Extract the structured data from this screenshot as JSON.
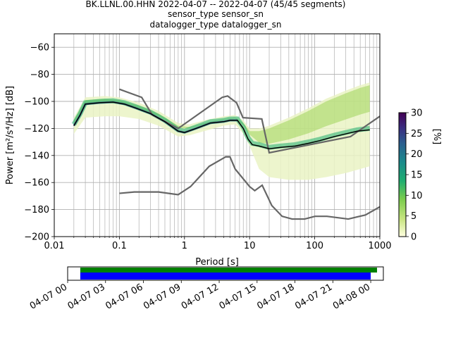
{
  "chart_data": [
    {
      "type": "heatmap",
      "title_lines": [
        "BK.LLNL.00.HHN   2022-04-07 -- 2022-04-07  (45/45 segments)",
        "sensor_type  sensor_sn",
        "datalogger_type  datalogger_sn"
      ],
      "xlabel": "Period [s]",
      "ylabel": "Power [m²/s⁴/Hz] [dB]",
      "x_scale": "log",
      "xlim": [
        0.01,
        1000
      ],
      "ylim": [
        -200,
        -50
      ],
      "x_ticks": [
        {
          "value": 0.01,
          "label": "0.01"
        },
        {
          "value": 0.1,
          "label": "0.1"
        },
        {
          "value": 1,
          "label": "1"
        },
        {
          "value": 10,
          "label": "10"
        },
        {
          "value": 100,
          "label": "100"
        },
        {
          "value": 1000,
          "label": "1000"
        }
      ],
      "y_ticks": [
        -60,
        -80,
        -100,
        -120,
        -140,
        -160,
        -180,
        -200
      ],
      "grid": true,
      "colorbar": {
        "label": "[%]",
        "min": 0,
        "max": 30,
        "ticks": [
          0,
          5,
          10,
          15,
          20,
          25,
          30
        ],
        "colors": [
          "#ffffe0",
          "#c9e582",
          "#7ccd4d",
          "#1fad70",
          "#1a8a8b",
          "#2a5f8f",
          "#3b2c80",
          "#440154"
        ]
      },
      "model_curves": {
        "color": "#666666",
        "high_noise_model": [
          [
            0.1,
            -91
          ],
          [
            0.22,
            -97
          ],
          [
            0.32,
            -110
          ],
          [
            0.8,
            -120
          ],
          [
            3.8,
            -97
          ],
          [
            4.6,
            -96
          ],
          [
            6.3,
            -101
          ],
          [
            7.9,
            -112
          ],
          [
            15.4,
            -113
          ],
          [
            20,
            -138
          ],
          [
            354.8,
            -126
          ],
          [
            1000,
            -111
          ]
        ],
        "low_noise_model": [
          [
            0.1,
            -168
          ],
          [
            0.17,
            -167
          ],
          [
            0.4,
            -167
          ],
          [
            0.8,
            -169
          ],
          [
            1.24,
            -163
          ],
          [
            2.4,
            -148
          ],
          [
            4.3,
            -141
          ],
          [
            5,
            -141
          ],
          [
            6,
            -150
          ],
          [
            10,
            -163
          ],
          [
            12,
            -166
          ],
          [
            15.6,
            -162
          ],
          [
            21.9,
            -177
          ],
          [
            31.6,
            -185
          ],
          [
            45,
            -187
          ],
          [
            70,
            -187
          ],
          [
            101,
            -185
          ],
          [
            154,
            -185
          ],
          [
            328,
            -187
          ],
          [
            600,
            -184
          ],
          [
            1000,
            -178
          ]
        ]
      },
      "mean_curve": {
        "color": "#000000",
        "points": [
          [
            0.02,
            -118
          ],
          [
            0.025,
            -110
          ],
          [
            0.03,
            -102
          ],
          [
            0.05,
            -101
          ],
          [
            0.08,
            -100.5
          ],
          [
            0.12,
            -102
          ],
          [
            0.18,
            -105
          ],
          [
            0.3,
            -109
          ],
          [
            0.5,
            -115
          ],
          [
            0.8,
            -122
          ],
          [
            1.0,
            -123
          ],
          [
            1.5,
            -120
          ],
          [
            2.5,
            -116
          ],
          [
            4.0,
            -115
          ],
          [
            5.0,
            -114
          ],
          [
            6.5,
            -114
          ],
          [
            8.0,
            -120
          ],
          [
            9.5,
            -128
          ],
          [
            11,
            -132
          ],
          [
            14,
            -133
          ],
          [
            20,
            -135
          ],
          [
            30,
            -134
          ],
          [
            50,
            -133
          ],
          [
            80,
            -131
          ],
          [
            120,
            -129
          ],
          [
            200,
            -126
          ],
          [
            300,
            -124
          ],
          [
            450,
            -122
          ],
          [
            700,
            -121
          ]
        ]
      },
      "density_band": [
        [
          0.02,
          -124,
          -112
        ],
        [
          0.03,
          -112,
          -97
        ],
        [
          0.06,
          -111,
          -96
        ],
        [
          0.1,
          -111,
          -97
        ],
        [
          0.2,
          -113,
          -101
        ],
        [
          0.4,
          -118,
          -107
        ],
        [
          0.8,
          -126,
          -116
        ],
        [
          1.2,
          -125,
          -117
        ],
        [
          2,
          -122,
          -114
        ],
        [
          4,
          -118,
          -111
        ],
        [
          6,
          -117,
          -110
        ],
        [
          8,
          -124,
          -114
        ],
        [
          10,
          -133,
          -120
        ],
        [
          14,
          -150,
          -120
        ],
        [
          20,
          -156,
          -118
        ],
        [
          40,
          -158,
          -112
        ],
        [
          80,
          -158,
          -105
        ],
        [
          150,
          -156,
          -98
        ],
        [
          300,
          -153,
          -92
        ],
        [
          500,
          -150,
          -88
        ],
        [
          700,
          -148,
          -86
        ]
      ]
    },
    {
      "type": "timeline",
      "x_range": [
        "2022-04-07 00:00",
        "2022-04-08 01:00"
      ],
      "x_ticks": [
        "04-07 00",
        "04-07 03",
        "04-07 06",
        "04-07 09",
        "04-07 12",
        "04-07 15",
        "04-07 18",
        "04-07 21",
        "04-08 00"
      ],
      "bars": [
        {
          "color": "#008000",
          "start": "2022-04-07 01:00",
          "end": "2022-04-08 00:30"
        },
        {
          "color": "#0000ff",
          "start": "2022-04-07 01:00",
          "end": "2022-04-08 00:00"
        }
      ]
    }
  ]
}
